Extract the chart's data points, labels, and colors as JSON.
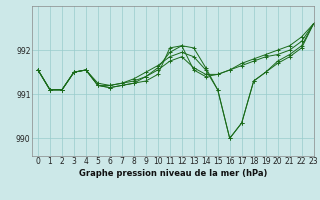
{
  "title": "Graphe pression niveau de la mer (hPa)",
  "bg_color": "#cce8e8",
  "grid_color": "#99cccc",
  "line_color": "#1a6b1a",
  "xlim": [
    -0.5,
    23
  ],
  "ylim": [
    989.6,
    993.0
  ],
  "yticks": [
    990,
    991,
    992
  ],
  "xtick_labels": [
    "0",
    "1",
    "2",
    "3",
    "4",
    "5",
    "6",
    "7",
    "8",
    "9",
    "10",
    "11",
    "12",
    "13",
    "14",
    "15",
    "16",
    "17",
    "18",
    "19",
    "20",
    "21",
    "22",
    "23"
  ],
  "series": [
    [
      991.55,
      991.1,
      991.1,
      991.5,
      991.55,
      991.2,
      991.15,
      991.2,
      991.25,
      991.3,
      991.45,
      992.05,
      992.1,
      991.55,
      991.4,
      991.45,
      991.55,
      991.65,
      991.75,
      991.85,
      991.9,
      992.0,
      992.2,
      992.6
    ],
    [
      991.55,
      991.1,
      991.1,
      991.5,
      991.55,
      991.25,
      991.2,
      991.25,
      991.3,
      991.4,
      991.55,
      991.75,
      991.85,
      991.6,
      991.45,
      991.45,
      991.55,
      991.7,
      991.8,
      991.9,
      992.0,
      992.1,
      992.3,
      992.6
    ],
    [
      991.55,
      991.1,
      991.1,
      991.5,
      991.55,
      991.2,
      991.15,
      991.2,
      991.25,
      991.4,
      991.6,
      991.95,
      992.1,
      992.05,
      991.6,
      991.1,
      990.0,
      990.35,
      991.3,
      991.5,
      991.75,
      991.9,
      992.1,
      992.6
    ],
    [
      991.55,
      991.1,
      991.1,
      991.5,
      991.55,
      991.2,
      991.2,
      991.25,
      991.35,
      991.5,
      991.65,
      991.85,
      991.95,
      991.85,
      991.55,
      991.1,
      990.0,
      990.35,
      991.3,
      991.5,
      991.7,
      991.85,
      992.05,
      992.6
    ]
  ]
}
